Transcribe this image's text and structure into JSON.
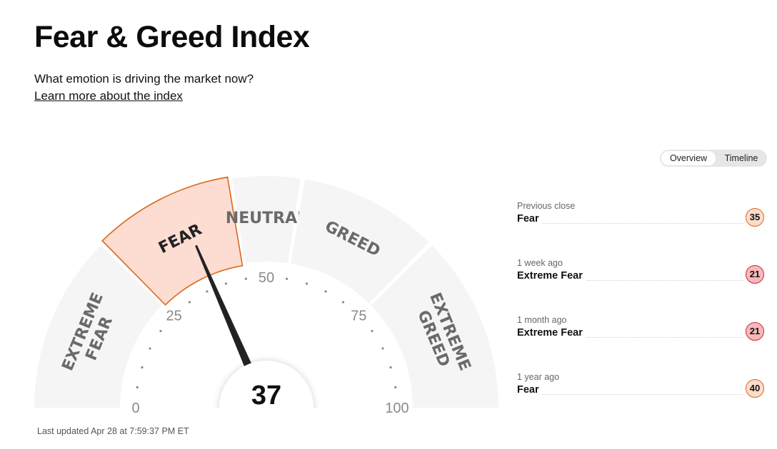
{
  "header": {
    "title": "Fear & Greed Index",
    "subtitle": "What emotion is driving the market now?",
    "learn_more": "Learn more about the index"
  },
  "view_toggle": {
    "options": [
      "Overview",
      "Timeline"
    ],
    "selected": "Overview"
  },
  "gauge": {
    "value": 37,
    "value_label": "37",
    "rating": "FEAR",
    "segments": [
      {
        "label_lines": [
          "EXTREME",
          "FEAR"
        ],
        "range": [
          0,
          25
        ]
      },
      {
        "label_lines": [
          "FEAR"
        ],
        "range": [
          25,
          45
        ]
      },
      {
        "label_lines": [
          "NEUTRAL"
        ],
        "range": [
          45,
          55
        ]
      },
      {
        "label_lines": [
          "GREED"
        ],
        "range": [
          55,
          75
        ]
      },
      {
        "label_lines": [
          "EXTREME",
          "GREED"
        ],
        "range": [
          75,
          100
        ]
      }
    ],
    "tick_labels": [
      "0",
      "25",
      "50",
      "75",
      "100"
    ],
    "colors": {
      "active_fill": "#fddcd1",
      "active_border": "#d9691e",
      "inactive_fill": "#f5f5f5",
      "needle": "#222222"
    }
  },
  "last_updated": "Last updated Apr 28 at 7:59:37 PM ET",
  "history": [
    {
      "period": "Previous close",
      "rating": "Fear",
      "value": "35",
      "level": "fear"
    },
    {
      "period": "1 week ago",
      "rating": "Extreme Fear",
      "value": "21",
      "level": "xfear"
    },
    {
      "period": "1 month ago",
      "rating": "Extreme Fear",
      "value": "21",
      "level": "xfear"
    },
    {
      "period": "1 year ago",
      "rating": "Fear",
      "value": "40",
      "level": "fear"
    }
  ]
}
